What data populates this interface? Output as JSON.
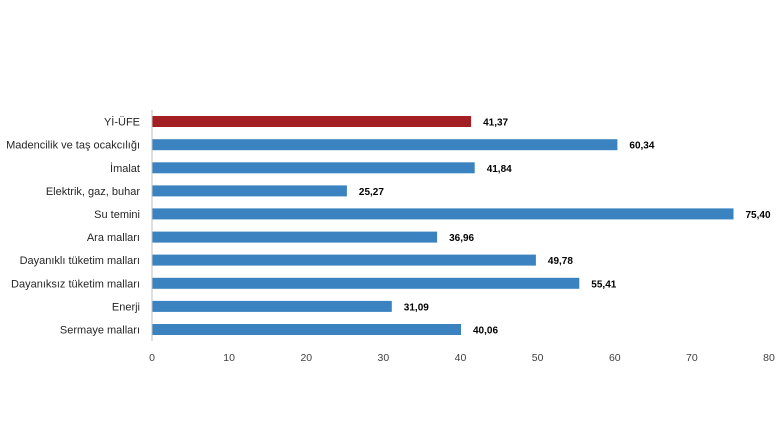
{
  "chart_data": {
    "type": "bar",
    "orientation": "horizontal",
    "categories": [
      "Yİ-ÜFE",
      "Madencilik ve taş ocakcılığı",
      "İmalat",
      "Elektrik, gaz, buhar",
      "Su temini",
      "Ara malları",
      "Dayanıklı tüketim malları",
      "Dayanıksız tüketim malları",
      "Enerji",
      "Sermaye malları"
    ],
    "values": [
      41.37,
      60.34,
      41.84,
      25.27,
      75.4,
      36.96,
      49.78,
      55.41,
      31.09,
      40.06
    ],
    "value_labels": [
      "41,37",
      "60,34",
      "41,84",
      "25,27",
      "75,40",
      "36,96",
      "49,78",
      "55,41",
      "31,09",
      "40,06"
    ],
    "bar_colors": [
      "#a31f23",
      "#3a83c0",
      "#3a83c0",
      "#3a83c0",
      "#3a83c0",
      "#3a83c0",
      "#3a83c0",
      "#3a83c0",
      "#3a83c0",
      "#3a83c0"
    ],
    "xlim": [
      0,
      80
    ],
    "xticks": [
      0,
      10,
      20,
      30,
      40,
      50,
      60,
      70,
      80
    ],
    "grid": false,
    "legend": "none",
    "title": "",
    "xlabel": "",
    "ylabel": ""
  }
}
